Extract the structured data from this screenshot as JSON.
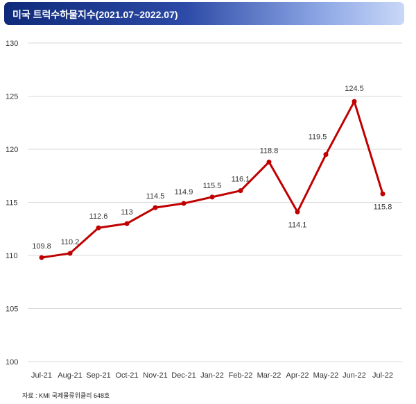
{
  "header": {
    "title": "미국 트럭수하물지수(2021.07~2022.07)"
  },
  "colors": {
    "title_start": "#0f2a7a",
    "title_end": "#c9d8f7",
    "line": "#c00000",
    "grid": "#d9d9d9"
  },
  "chart_data": {
    "type": "line",
    "title": "미국 트럭수하물지수(2021.07~2022.07)",
    "categories": [
      "Jul-21",
      "Aug-21",
      "Sep-21",
      "Oct-21",
      "Nov-21",
      "Dec-21",
      "Jan-22",
      "Feb-22",
      "Mar-22",
      "Apr-22",
      "May-22",
      "Jun-22",
      "Jul-22"
    ],
    "series": [
      {
        "values": [
          109.8,
          110.2,
          112.6,
          113,
          114.5,
          114.9,
          115.5,
          116.1,
          118.8,
          114.1,
          119.5,
          124.5,
          115.8
        ],
        "labels": [
          "109.8",
          "110.2",
          "112.6",
          "113",
          "114.5",
          "114.9",
          "115.5",
          "116.1",
          "118.8",
          "114.1",
          "119.5",
          "124.5",
          "115.8"
        ]
      }
    ],
    "ylim": [
      100,
      130
    ],
    "yticks": [
      "100",
      "105",
      "110",
      "115",
      "120",
      "125",
      "130"
    ],
    "grid": true,
    "legend": "none"
  },
  "footer": {
    "source": "자료 : KMI 국제물류위클리 648호"
  }
}
